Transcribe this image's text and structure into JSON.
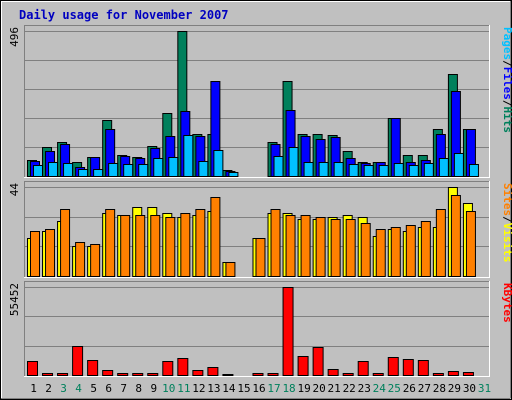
{
  "chart_data": {
    "type": "bar",
    "title": "Daily usage for November 2007",
    "categories": [
      "1",
      "2",
      "3",
      "4",
      "5",
      "6",
      "7",
      "8",
      "9",
      "10",
      "11",
      "12",
      "13",
      "14",
      "15",
      "16",
      "17",
      "18",
      "19",
      "20",
      "21",
      "22",
      "23",
      "24",
      "25",
      "26",
      "27",
      "28",
      "29",
      "30",
      "31"
    ],
    "weekend_days": [
      "3",
      "4",
      "10",
      "11",
      "17",
      "18",
      "24",
      "25",
      "31"
    ],
    "panels": [
      {
        "id": "hits",
        "ylabel_parts": [
          {
            "text": "Pages",
            "color": "#00c0ff"
          },
          {
            "text": "/",
            "color": "#000000"
          },
          {
            "text": "Files",
            "color": "#0000ff"
          },
          {
            "text": "/",
            "color": "#000000"
          },
          {
            "text": "Hits",
            "color": "#00805c"
          }
        ],
        "ymax_label": "496",
        "ymax": 496,
        "series": [
          {
            "name": "Hits",
            "color": "#00805c",
            "values": [
              56,
              100,
              116,
              48,
              64,
              192,
              72,
              64,
              104,
              216,
              496,
              144,
              144,
              20,
              0,
              0,
              116,
              324,
              144,
              144,
              140,
              84,
              48,
              48,
              200,
              72,
              72,
              160,
              348,
              160,
              0
            ]
          },
          {
            "name": "Files",
            "color": "#0000ff",
            "values": [
              52,
              84,
              108,
              32,
              64,
              160,
              68,
              60,
              96,
              136,
              224,
              136,
              324,
              16,
              0,
              0,
              108,
              226,
              136,
              128,
              132,
              60,
              44,
              48,
              200,
              48,
              56,
              144,
              292,
              160,
              0
            ]
          },
          {
            "name": "Pages",
            "color": "#00c0ff",
            "values": [
              36,
              48,
              44,
              24,
              24,
              44,
              40,
              40,
              60,
              64,
              140,
              52,
              88,
              12,
              0,
              0,
              68,
              100,
              48,
              48,
              48,
              40,
              36,
              36,
              44,
              36,
              44,
              60,
              80,
              40,
              0
            ]
          }
        ]
      },
      {
        "id": "visits",
        "ylabel_parts": [
          {
            "text": "Sites",
            "color": "#ff8000"
          },
          {
            "text": "/",
            "color": "#000000"
          },
          {
            "text": "Visits",
            "color": "#ffff00"
          }
        ],
        "ymax_label": "44",
        "ymax": 44,
        "series": [
          {
            "name": "Visits",
            "color": "#ffff00",
            "values": [
              19,
              22,
              27,
              15,
              15,
              31,
              30,
              34,
              34,
              31,
              29,
              30,
              32,
              7,
              0,
              19,
              31,
              31,
              28,
              28,
              29,
              30,
              29,
              20,
              23,
              22,
              24,
              24,
              44,
              36,
              0
            ]
          },
          {
            "name": "Sites",
            "color": "#ff8000",
            "values": [
              22,
              23,
              33,
              17,
              16,
              33,
              30,
              30,
              30,
              29,
              31,
              33,
              39,
              7,
              0,
              19,
              33,
              30,
              30,
              29,
              28,
              28,
              26,
              23,
              24,
              25,
              27,
              33,
              40,
              32,
              0
            ]
          }
        ]
      },
      {
        "id": "kbytes",
        "ylabel_parts": [
          {
            "text": "KBytes",
            "color": "#ff0000"
          }
        ],
        "ymax_label": "55452",
        "ymax": 55452,
        "series": [
          {
            "name": "KBytes",
            "color": "#ff0000",
            "values": [
              9000,
              1500,
              1500,
              18500,
              9500,
              3000,
              1500,
              1000,
              1000,
              9000,
              11000,
              3000,
              4800,
              700,
              0,
              1500,
              1500,
              55452,
              12000,
              17500,
              3500,
              1500,
              9000,
              1000,
              11500,
              10000,
              9500,
              1500,
              2400,
              2000,
              0
            ]
          }
        ]
      }
    ]
  }
}
